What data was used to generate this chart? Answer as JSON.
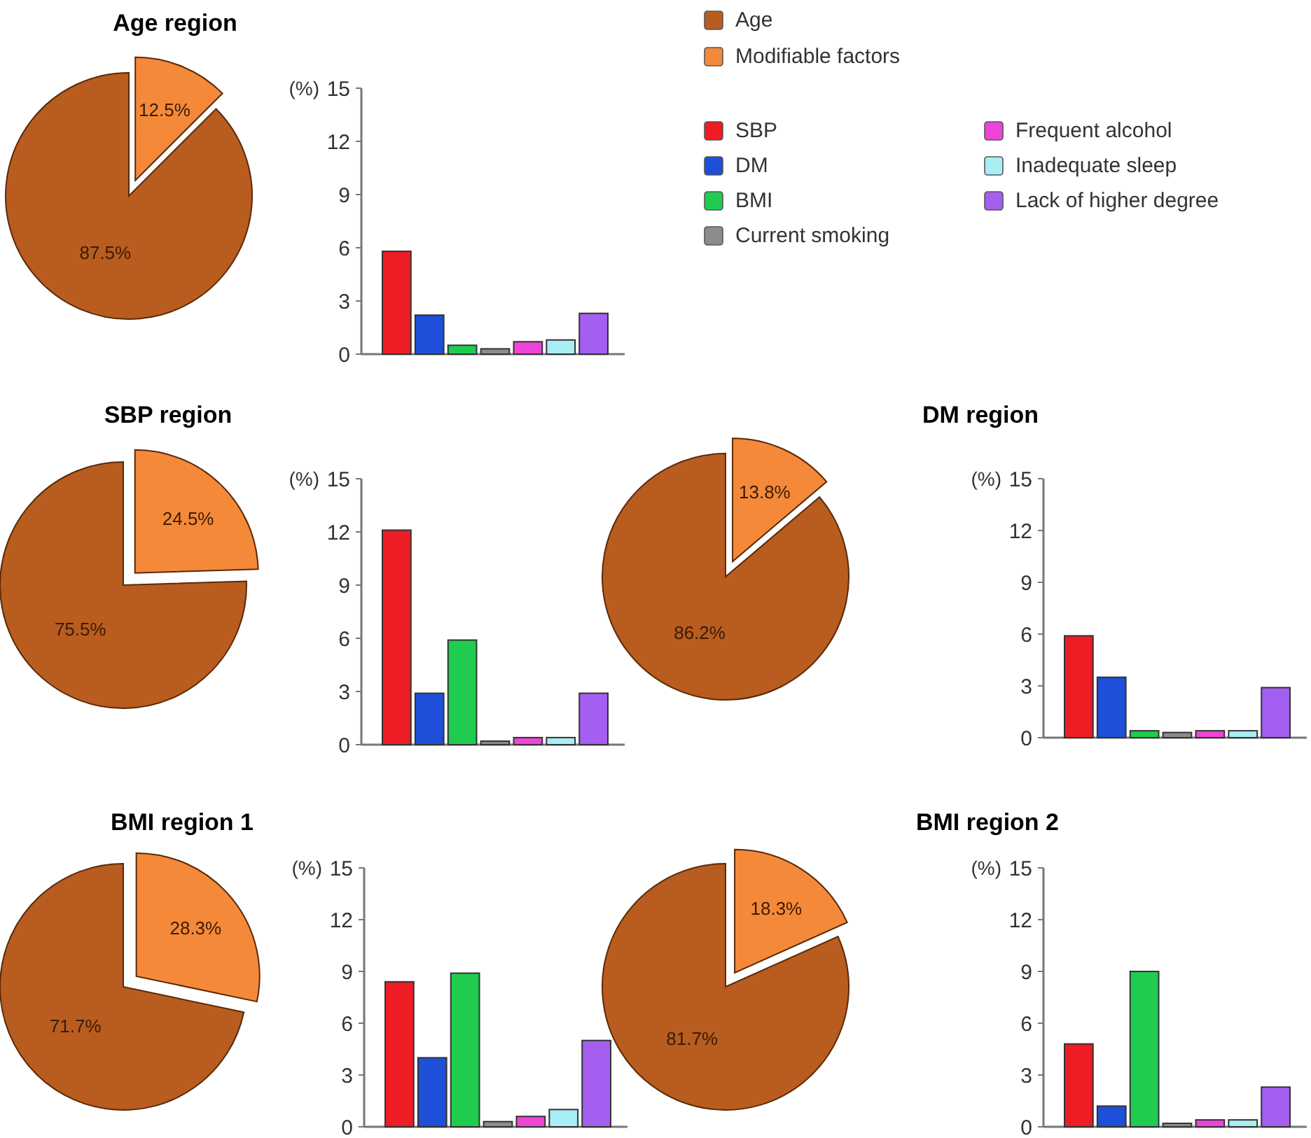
{
  "chart_data": [
    {
      "type": "pie",
      "title": "Age region",
      "categories": [
        "Age",
        "Modifiable factors"
      ],
      "values": [
        87.5,
        12.5
      ],
      "colors": [
        "#b95c1f",
        "#f5893a"
      ],
      "value_labels": [
        "87.5%",
        "12.5%"
      ],
      "legend": "right"
    },
    {
      "type": "bar",
      "categories": [
        null
      ],
      "series": [
        {
          "name": "SBP",
          "color": "#ee1c25",
          "values": [
            5.8
          ]
        },
        {
          "name": "DM",
          "color": "#1d4fd8",
          "values": [
            2.2
          ]
        },
        {
          "name": "BMI",
          "color": "#1fcc4f",
          "values": [
            0.5
          ]
        },
        {
          "name": "Current smoking",
          "color": "#8c8c8c",
          "values": [
            0.3
          ]
        },
        {
          "name": "Frequent alcohol",
          "color": "#ee44d8",
          "values": [
            0.7
          ]
        },
        {
          "name": "Inadequate sleep",
          "color": "#a8eef4",
          "values": [
            0.8
          ]
        },
        {
          "name": "Lack of higher degree",
          "color": "#a45ef0",
          "values": [
            2.3
          ]
        }
      ],
      "ylabel": "(%)",
      "ylim": [
        0,
        15
      ],
      "yticks": [
        0,
        3,
        6,
        9,
        12,
        15
      ],
      "tick_labels": "y",
      "legend": "right"
    },
    {
      "type": "pie",
      "title": "SBP region",
      "categories": [
        null,
        null
      ],
      "values": [
        75.5,
        24.5
      ],
      "colors": [
        "#b95c1f",
        "#f5893a"
      ],
      "value_labels": [
        "75.5%",
        "24.5%"
      ]
    },
    {
      "type": "bar",
      "categories": [
        null
      ],
      "series": [
        {
          "color": "#ee1c25",
          "values": [
            12.1
          ]
        },
        {
          "color": "#1d4fd8",
          "values": [
            2.9
          ]
        },
        {
          "color": "#1fcc4f",
          "values": [
            5.9
          ]
        },
        {
          "color": "#8c8c8c",
          "values": [
            0.2
          ]
        },
        {
          "color": "#ee44d8",
          "values": [
            0.4
          ]
        },
        {
          "color": "#a8eef4",
          "values": [
            0.4
          ]
        },
        {
          "color": "#a45ef0",
          "values": [
            2.9
          ]
        }
      ],
      "ylabel": "(%)",
      "ylim": [
        0,
        15
      ],
      "yticks": [
        0,
        3,
        6,
        9,
        12,
        15
      ],
      "tick_labels": "y"
    },
    {
      "type": "pie",
      "title": "DM region",
      "categories": [
        null,
        null
      ],
      "values": [
        86.2,
        13.8
      ],
      "colors": [
        "#b95c1f",
        "#f5893a"
      ],
      "value_labels": [
        "86.2%",
        "13.8%"
      ]
    },
    {
      "type": "bar",
      "categories": [
        null
      ],
      "series": [
        {
          "color": "#ee1c25",
          "values": [
            5.9
          ]
        },
        {
          "color": "#1d4fd8",
          "values": [
            3.5
          ]
        },
        {
          "color": "#1fcc4f",
          "values": [
            0.4
          ]
        },
        {
          "color": "#8c8c8c",
          "values": [
            0.3
          ]
        },
        {
          "color": "#ee44d8",
          "values": [
            0.4
          ]
        },
        {
          "color": "#a8eef4",
          "values": [
            0.4
          ]
        },
        {
          "color": "#a45ef0",
          "values": [
            2.9
          ]
        }
      ],
      "ylabel": "(%)",
      "ylim": [
        0,
        15
      ],
      "yticks": [
        0,
        3,
        6,
        9,
        12,
        15
      ],
      "tick_labels": "y"
    },
    {
      "type": "pie",
      "title": "BMI region 1",
      "categories": [
        null,
        null
      ],
      "values": [
        71.7,
        28.3
      ],
      "colors": [
        "#b95c1f",
        "#f5893a"
      ],
      "value_labels": [
        "71.7%",
        "28.3%"
      ]
    },
    {
      "type": "bar",
      "categories": [
        null
      ],
      "series": [
        {
          "color": "#ee1c25",
          "values": [
            8.4
          ]
        },
        {
          "color": "#1d4fd8",
          "values": [
            4.0
          ]
        },
        {
          "color": "#1fcc4f",
          "values": [
            8.9
          ]
        },
        {
          "color": "#8c8c8c",
          "values": [
            0.3
          ]
        },
        {
          "color": "#ee44d8",
          "values": [
            0.6
          ]
        },
        {
          "color": "#a8eef4",
          "values": [
            1.0
          ]
        },
        {
          "color": "#a45ef0",
          "values": [
            5.0
          ]
        }
      ],
      "ylabel": "(%)",
      "ylim": [
        0,
        15
      ],
      "yticks": [
        0,
        3,
        6,
        9,
        12,
        15
      ],
      "tick_labels": "y"
    },
    {
      "type": "pie",
      "title": "BMI region 2",
      "categories": [
        null,
        null
      ],
      "values": [
        81.7,
        18.3
      ],
      "colors": [
        "#b95c1f",
        "#f5893a"
      ],
      "value_labels": [
        "81.7%",
        "18.3%"
      ]
    },
    {
      "type": "bar",
      "categories": [
        null
      ],
      "series": [
        {
          "color": "#ee1c25",
          "values": [
            4.8
          ]
        },
        {
          "color": "#1d4fd8",
          "values": [
            1.2
          ]
        },
        {
          "color": "#1fcc4f",
          "values": [
            9.0
          ]
        },
        {
          "color": "#8c8c8c",
          "values": [
            0.2
          ]
        },
        {
          "color": "#ee44d8",
          "values": [
            0.4
          ]
        },
        {
          "color": "#a8eef4",
          "values": [
            0.4
          ]
        },
        {
          "color": "#a45ef0",
          "values": [
            2.3
          ]
        }
      ],
      "ylabel": "(%)",
      "ylim": [
        0,
        15
      ],
      "yticks": [
        0,
        3,
        6,
        9,
        12,
        15
      ],
      "tick_labels": "y"
    }
  ]
}
